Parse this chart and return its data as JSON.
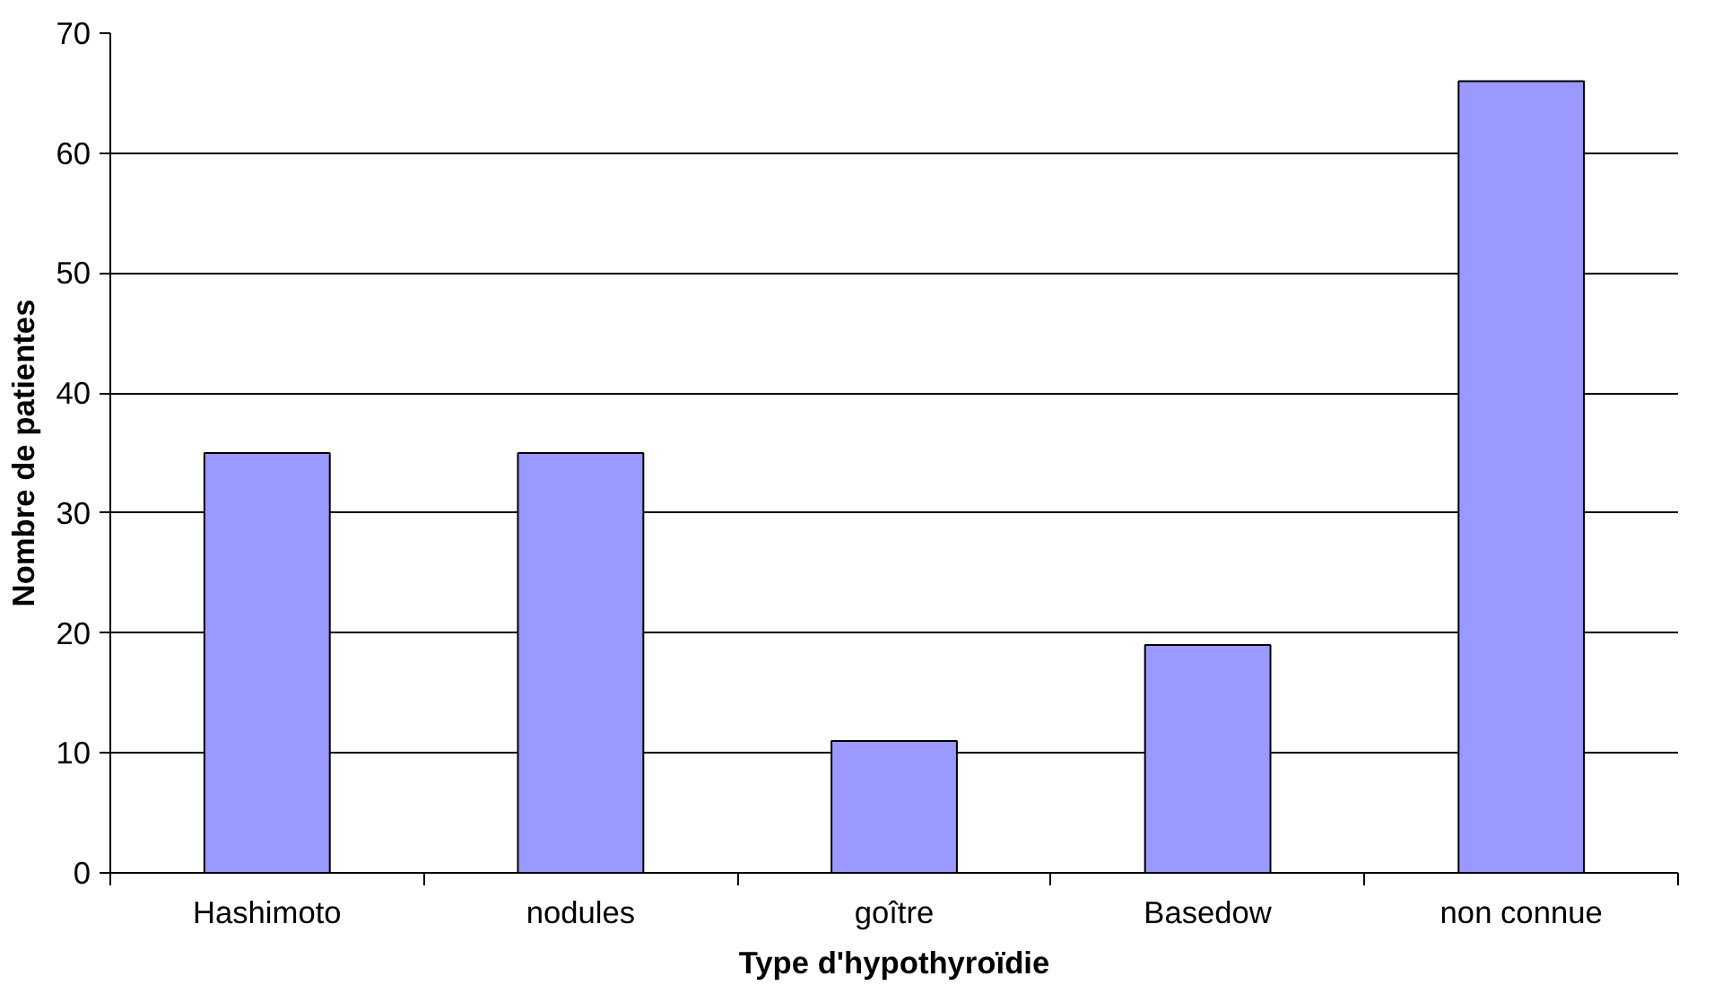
{
  "chart_data": {
    "type": "bar",
    "xlabel": "Type d'hypothyroïdie",
    "ylabel": "Nombre de patientes",
    "categories": [
      "Hashimoto",
      "nodules",
      "goître",
      "Basedow",
      "non connue"
    ],
    "values": [
      35,
      35,
      11,
      19,
      66
    ],
    "color": "#9999ff",
    "ylim": [
      0,
      70
    ],
    "yticks": [
      0,
      10,
      20,
      30,
      40,
      50,
      60,
      70
    ],
    "grid": "y"
  }
}
